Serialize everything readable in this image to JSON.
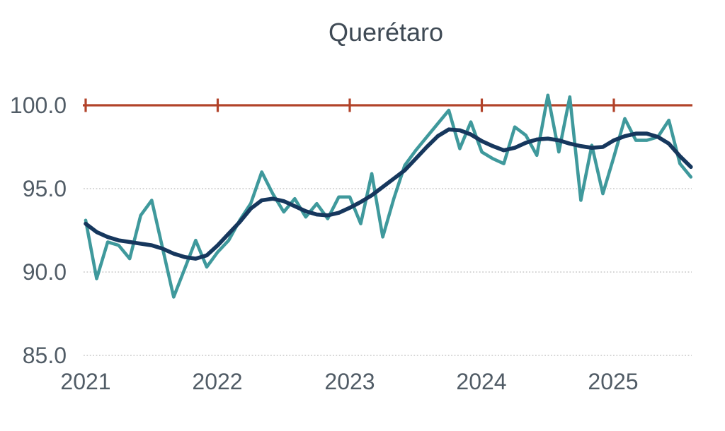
{
  "title": "Querétaro",
  "colors": {
    "raw_series": "#3f999c",
    "trend_series": "#16375d",
    "reference_line": "#b2432a",
    "gridline": "#c9c9c9",
    "tick_label": "#515c66",
    "title": "#3f4a55",
    "background": "#ffffff"
  },
  "chart_data": {
    "type": "line",
    "title": "Querétaro",
    "xlabel": "",
    "ylabel": "",
    "x_start": "2021-01",
    "x_frequency": "monthly",
    "n_points": 56,
    "x_tick_labels": [
      "2021",
      "2022",
      "2023",
      "2024",
      "2025"
    ],
    "y_tick_labels": [
      "100.0",
      "95.0",
      "90.0",
      "85.0"
    ],
    "y_ticks": [
      100.0,
      95.0,
      90.0,
      85.0
    ],
    "y_gridlines_dotted": [
      95.0,
      90.0,
      85.0
    ],
    "reference_value": 100.0,
    "ylim": [
      84.5,
      101
    ],
    "grid": "horizontal-dotted",
    "legend_position": "none",
    "series": [
      {
        "name": "original",
        "style": "jagged",
        "color": "#3f999c",
        "values": [
          93.1,
          89.6,
          91.8,
          91.6,
          90.8,
          93.4,
          94.3,
          91.4,
          88.5,
          90.2,
          91.9,
          90.3,
          91.2,
          91.9,
          93.1,
          94.1,
          96.0,
          94.7,
          93.6,
          94.4,
          93.3,
          94.1,
          93.2,
          94.5,
          94.5,
          92.9,
          95.9,
          92.1,
          94.4,
          96.4,
          97.3,
          98.1,
          98.9,
          99.7,
          97.4,
          99.0,
          97.2,
          96.8,
          96.5,
          98.7,
          98.2,
          97.0,
          100.6,
          97.2,
          100.5,
          94.3,
          97.6,
          94.7,
          96.9,
          99.2,
          97.9,
          97.9,
          98.1,
          99.1,
          96.5,
          95.7
        ]
      },
      {
        "name": "trend",
        "style": "smooth",
        "color": "#16375d",
        "values": [
          92.9,
          92.4,
          92.1,
          91.9,
          91.8,
          91.7,
          91.6,
          91.4,
          91.1,
          90.9,
          90.8,
          91.0,
          91.6,
          92.3,
          93.0,
          93.8,
          94.3,
          94.4,
          94.25,
          93.95,
          93.65,
          93.45,
          93.4,
          93.55,
          93.85,
          94.2,
          94.6,
          95.1,
          95.6,
          96.1,
          96.8,
          97.5,
          98.15,
          98.55,
          98.5,
          98.25,
          97.85,
          97.55,
          97.3,
          97.45,
          97.75,
          97.95,
          98.0,
          97.9,
          97.7,
          97.55,
          97.45,
          97.5,
          97.9,
          98.15,
          98.3,
          98.3,
          98.1,
          97.7,
          96.95,
          96.3
        ]
      }
    ]
  }
}
